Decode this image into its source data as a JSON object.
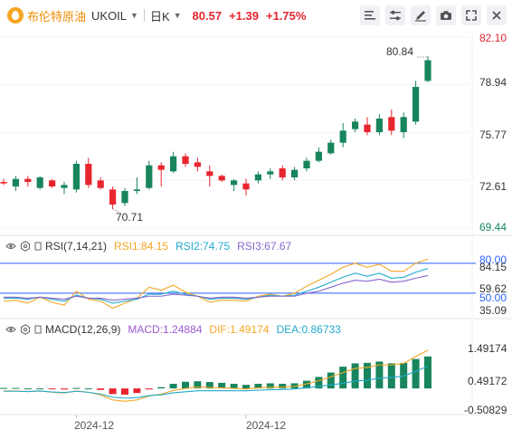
{
  "header": {
    "instrument_name": "布伦特原油",
    "instrument_code": "UKOIL",
    "timeframe": "日K",
    "price": "80.57",
    "change": "+1.39",
    "change_pct": "+1.75%"
  },
  "colors": {
    "up": "#e8252f",
    "down": "#18855c",
    "rsi1": "#f5a623",
    "rsi2": "#22aacc",
    "rsi3": "#8866cc",
    "macd": "#9b59d0",
    "dif": "#f5a623",
    "dea": "#22aacc",
    "accent_line": "#2962ff"
  },
  "icons": [
    "chart-type-icon",
    "settings-icon",
    "draw-icon",
    "camera-icon",
    "fullscreen-icon",
    "close-icon"
  ],
  "main": {
    "price_axis": [
      "82.10",
      "78.94",
      "75.77",
      "72.61",
      "69.44"
    ],
    "high_annotation": "80.84",
    "low_annotation": "70.71"
  },
  "rsi": {
    "title": "RSI(7,14,21)",
    "rsi1_label": "RSI1:84.15",
    "rsi2_label": "RSI2:74.75",
    "rsi3_label": "RSI3:67.67",
    "axis": [
      "80.00",
      "84.15",
      "59.62",
      "50.00",
      "35.09"
    ]
  },
  "macd": {
    "title": "MACD(12,26,9)",
    "macd_label": "MACD:1.24884",
    "dif_label": "DIF:1.49174",
    "dea_label": "DEA:0.86733",
    "axis": [
      "1.49174",
      "0.49172",
      "-0.50829"
    ]
  },
  "x_axis": [
    "2024-12",
    "2024-12"
  ],
  "chart_data": [
    {
      "type": "candlestick",
      "title": "",
      "ylim": [
        69.44,
        82.1
      ],
      "candles": [
        {
          "o": 72.5,
          "h": 72.7,
          "l": 72.3,
          "c": 72.4
        },
        {
          "o": 72.2,
          "h": 72.9,
          "l": 71.9,
          "c": 72.7
        },
        {
          "o": 72.7,
          "h": 72.9,
          "l": 72.2,
          "c": 72.5
        },
        {
          "o": 72.1,
          "h": 72.9,
          "l": 72.0,
          "c": 72.8
        },
        {
          "o": 72.6,
          "h": 72.7,
          "l": 72.1,
          "c": 72.2
        },
        {
          "o": 72.1,
          "h": 72.5,
          "l": 71.7,
          "c": 72.3
        },
        {
          "o": 72.0,
          "h": 73.9,
          "l": 71.8,
          "c": 73.7
        },
        {
          "o": 73.7,
          "h": 74.1,
          "l": 72.1,
          "c": 72.3
        },
        {
          "o": 72.6,
          "h": 72.8,
          "l": 72.0,
          "c": 72.1
        },
        {
          "o": 72.0,
          "h": 72.2,
          "l": 70.71,
          "c": 71.0
        },
        {
          "o": 71.1,
          "h": 72.1,
          "l": 70.9,
          "c": 71.9
        },
        {
          "o": 71.9,
          "h": 72.8,
          "l": 71.7,
          "c": 72.0
        },
        {
          "o": 72.1,
          "h": 73.9,
          "l": 72.0,
          "c": 73.6
        },
        {
          "o": 73.6,
          "h": 73.8,
          "l": 72.2,
          "c": 73.3
        },
        {
          "o": 73.2,
          "h": 74.5,
          "l": 73.1,
          "c": 74.2
        },
        {
          "o": 74.2,
          "h": 74.4,
          "l": 73.5,
          "c": 73.7
        },
        {
          "o": 73.8,
          "h": 74.1,
          "l": 73.2,
          "c": 73.5
        },
        {
          "o": 73.2,
          "h": 73.6,
          "l": 72.2,
          "c": 72.9
        },
        {
          "o": 72.9,
          "h": 73.0,
          "l": 72.5,
          "c": 72.6
        },
        {
          "o": 72.3,
          "h": 72.7,
          "l": 71.9,
          "c": 72.6
        },
        {
          "o": 72.4,
          "h": 72.7,
          "l": 71.6,
          "c": 72.0
        },
        {
          "o": 72.6,
          "h": 73.2,
          "l": 72.4,
          "c": 73.0
        },
        {
          "o": 73.0,
          "h": 73.4,
          "l": 72.7,
          "c": 73.2
        },
        {
          "o": 73.4,
          "h": 73.6,
          "l": 72.6,
          "c": 72.8
        },
        {
          "o": 72.8,
          "h": 73.5,
          "l": 72.6,
          "c": 73.3
        },
        {
          "o": 73.4,
          "h": 74.1,
          "l": 73.2,
          "c": 73.9
        },
        {
          "o": 73.9,
          "h": 74.8,
          "l": 73.8,
          "c": 74.5
        },
        {
          "o": 74.4,
          "h": 75.3,
          "l": 74.3,
          "c": 75.1
        },
        {
          "o": 75.1,
          "h": 76.4,
          "l": 74.8,
          "c": 75.9
        },
        {
          "o": 76.0,
          "h": 76.7,
          "l": 75.8,
          "c": 76.5
        },
        {
          "o": 76.3,
          "h": 76.8,
          "l": 75.6,
          "c": 75.8
        },
        {
          "o": 75.8,
          "h": 77.0,
          "l": 75.6,
          "c": 76.7
        },
        {
          "o": 76.8,
          "h": 77.3,
          "l": 75.6,
          "c": 75.9
        },
        {
          "o": 75.8,
          "h": 77.1,
          "l": 75.4,
          "c": 76.8
        },
        {
          "o": 76.5,
          "h": 79.2,
          "l": 76.3,
          "c": 78.8
        },
        {
          "o": 79.2,
          "h": 80.84,
          "l": 79.1,
          "c": 80.57
        }
      ]
    },
    {
      "type": "line",
      "title": "RSI(7,14,21)",
      "ylim": [
        30,
        88
      ],
      "series": [
        {
          "name": "RSI1",
          "values": [
            42,
            43,
            40,
            46,
            41,
            38,
            52,
            44,
            42,
            35,
            40,
            45,
            56,
            53,
            58,
            51,
            47,
            41,
            43,
            43,
            42,
            47,
            49,
            47,
            50,
            57,
            63,
            69,
            76,
            80,
            76,
            79,
            72,
            72,
            80,
            84.15
          ]
        },
        {
          "name": "RSI2",
          "values": [
            45,
            45,
            44,
            46,
            44,
            42,
            48,
            45,
            44,
            40,
            42,
            44,
            49,
            49,
            52,
            49,
            47,
            44,
            45,
            45,
            44,
            46,
            48,
            47,
            48,
            52,
            56,
            61,
            66,
            70,
            67,
            70,
            65,
            66,
            71,
            74.75
          ]
        },
        {
          "name": "RSI3",
          "values": [
            46,
            46,
            45,
            46,
            45,
            44,
            47,
            45,
            45,
            43,
            44,
            45,
            47,
            47,
            49,
            48,
            47,
            45,
            46,
            46,
            45,
            46,
            47,
            47,
            47,
            50,
            52,
            56,
            60,
            63,
            62,
            64,
            61,
            62,
            65,
            67.67
          ]
        }
      ],
      "reference_lines": [
        80,
        50
      ]
    },
    {
      "type": "bar",
      "title": "MACD(12,26,9)",
      "ylim": [
        -0.95,
        1.95
      ],
      "series": [
        {
          "name": "MACD",
          "values": [
            0.02,
            0.02,
            0.0,
            0.0,
            -0.02,
            -0.04,
            0.02,
            0.0,
            -0.06,
            -0.22,
            -0.24,
            -0.18,
            -0.04,
            0.05,
            0.18,
            0.26,
            0.28,
            0.25,
            0.22,
            0.18,
            0.14,
            0.18,
            0.2,
            0.18,
            0.2,
            0.3,
            0.45,
            0.62,
            0.85,
            0.98,
            1.0,
            1.05,
            0.98,
            1.0,
            1.15,
            1.24884
          ]
        },
        {
          "name": "DIF",
          "values": [
            -0.1,
            -0.1,
            -0.12,
            -0.1,
            -0.15,
            -0.18,
            -0.1,
            -0.15,
            -0.25,
            -0.45,
            -0.5,
            -0.45,
            -0.3,
            -0.22,
            -0.08,
            0.0,
            0.05,
            0.04,
            0.02,
            0.0,
            -0.02,
            0.02,
            0.05,
            0.05,
            0.08,
            0.18,
            0.3,
            0.45,
            0.62,
            0.78,
            0.82,
            0.92,
            0.92,
            0.98,
            1.25,
            1.49174
          ]
        },
        {
          "name": "DEA",
          "values": [
            -0.11,
            -0.11,
            -0.12,
            -0.1,
            -0.14,
            -0.16,
            -0.11,
            -0.15,
            -0.22,
            -0.34,
            -0.38,
            -0.36,
            -0.28,
            -0.25,
            -0.17,
            -0.13,
            -0.09,
            -0.09,
            -0.09,
            -0.09,
            -0.09,
            -0.07,
            -0.05,
            -0.04,
            -0.02,
            0.03,
            0.08,
            0.14,
            0.2,
            0.29,
            0.32,
            0.4,
            0.43,
            0.48,
            0.67,
            0.86733
          ]
        }
      ],
      "x_labels": [
        "2024-12",
        "2024-12"
      ]
    }
  ]
}
